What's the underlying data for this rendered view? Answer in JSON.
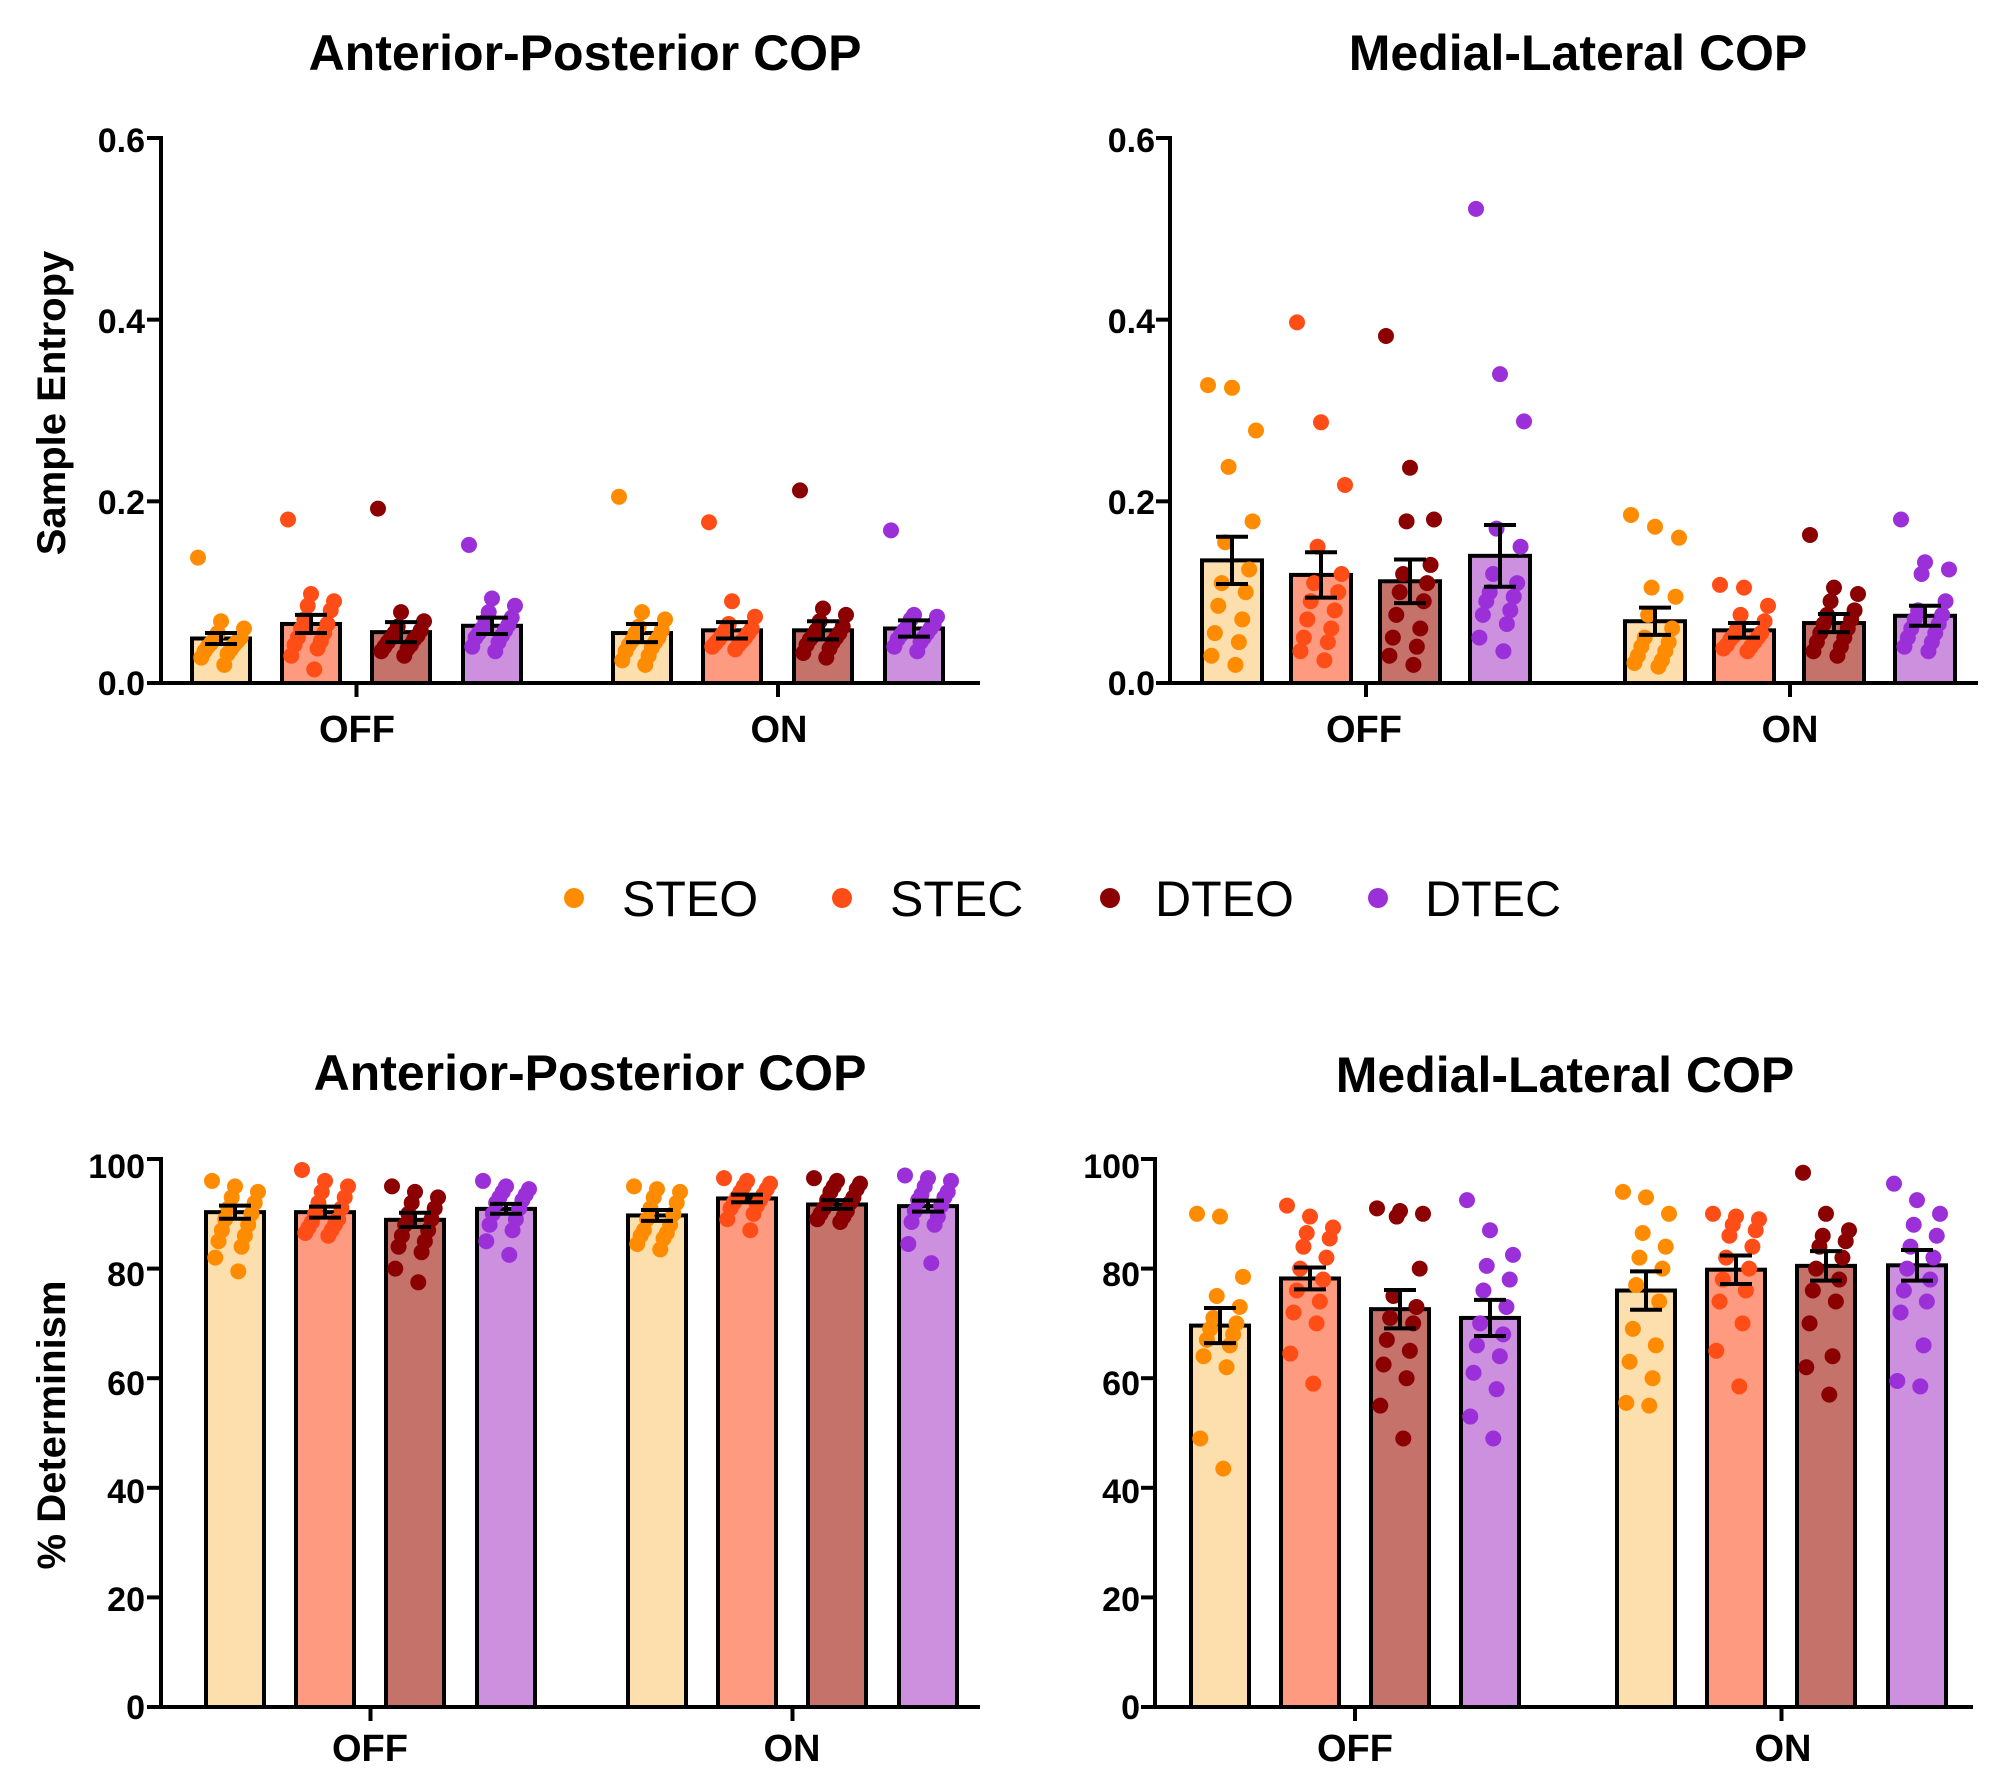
{
  "legend": [
    {
      "label": "STEO",
      "color": "#FF8C00",
      "fill": "#FDDFAE"
    },
    {
      "label": "STEC",
      "color": "#FF4D17",
      "fill": "#FD9A80"
    },
    {
      "label": "DTEO",
      "color": "#8B0000",
      "fill": "#C5726A"
    },
    {
      "label": "DTEC",
      "color": "#9B30D9",
      "fill": "#CC90DF"
    }
  ],
  "chart_data": [
    {
      "id": "se-ap",
      "type": "bar",
      "title": "Anterior-Posterior COP",
      "ylabel": "Sample Entropy",
      "ylim": [
        0,
        0.6
      ],
      "yticks": [
        "0.0",
        "0.2",
        "0.4",
        "0.6"
      ],
      "yticks_values": [
        0,
        0.2,
        0.4,
        0.6
      ],
      "groups": [
        "OFF",
        "ON"
      ],
      "series": [
        {
          "name": "STEO",
          "means": [
            0.049,
            0.055
          ],
          "sem": [
            0.006,
            0.01
          ],
          "points": [
            [
              0.138,
              0.068,
              0.06,
              0.055,
              0.05,
              0.048,
              0.046,
              0.044,
              0.042,
              0.04,
              0.037,
              0.035,
              0.032,
              0.028,
              0.02
            ],
            [
              0.205,
              0.078,
              0.07,
              0.062,
              0.058,
              0.055,
              0.05,
              0.047,
              0.045,
              0.042,
              0.039,
              0.035,
              0.03,
              0.025,
              0.02
            ]
          ]
        },
        {
          "name": "STEC",
          "means": [
            0.065,
            0.058
          ],
          "sem": [
            0.01,
            0.009
          ],
          "points": [
            [
              0.18,
              0.098,
              0.09,
              0.085,
              0.08,
              0.07,
              0.065,
              0.06,
              0.055,
              0.05,
              0.046,
              0.042,
              0.038,
              0.03,
              0.015
            ],
            [
              0.177,
              0.09,
              0.073,
              0.065,
              0.06,
              0.058,
              0.055,
              0.053,
              0.05,
              0.048,
              0.046,
              0.044,
              0.042,
              0.04,
              0.037
            ]
          ]
        },
        {
          "name": "DTEO",
          "means": [
            0.056,
            0.058
          ],
          "sem": [
            0.011,
            0.01
          ],
          "points": [
            [
              0.192,
              0.078,
              0.068,
              0.062,
              0.058,
              0.055,
              0.052,
              0.05,
              0.048,
              0.045,
              0.042,
              0.04,
              0.038,
              0.035,
              0.03
            ],
            [
              0.212,
              0.082,
              0.075,
              0.068,
              0.062,
              0.058,
              0.055,
              0.052,
              0.05,
              0.048,
              0.045,
              0.042,
              0.038,
              0.033,
              0.028
            ]
          ]
        },
        {
          "name": "DTEC",
          "means": [
            0.063,
            0.06
          ],
          "sem": [
            0.009,
            0.009
          ],
          "points": [
            [
              0.152,
              0.093,
              0.085,
              0.078,
              0.072,
              0.068,
              0.064,
              0.06,
              0.058,
              0.055,
              0.052,
              0.05,
              0.045,
              0.04,
              0.035
            ],
            [
              0.168,
              0.075,
              0.073,
              0.07,
              0.065,
              0.062,
              0.06,
              0.058,
              0.055,
              0.053,
              0.05,
              0.048,
              0.045,
              0.04,
              0.035
            ]
          ]
        }
      ]
    },
    {
      "id": "se-ml",
      "type": "bar",
      "title": "Medial-Lateral COP",
      "ylabel": "",
      "ylim": [
        0,
        0.6
      ],
      "yticks": [
        "0.0",
        "0.2",
        "0.4",
        "0.6"
      ],
      "yticks_values": [
        0,
        0.2,
        0.4,
        0.6
      ],
      "groups": [
        "OFF",
        "ON"
      ],
      "series": [
        {
          "name": "STEO",
          "means": [
            0.135,
            0.068
          ],
          "sem": [
            0.026,
            0.015
          ],
          "points": [
            [
              0.328,
              0.325,
              0.278,
              0.238,
              0.178,
              0.155,
              0.125,
              0.11,
              0.1,
              0.085,
              0.07,
              0.055,
              0.045,
              0.03,
              0.02
            ],
            [
              0.185,
              0.172,
              0.16,
              0.105,
              0.095,
              0.075,
              0.06,
              0.05,
              0.045,
              0.04,
              0.035,
              0.03,
              0.025,
              0.022,
              0.018
            ]
          ]
        },
        {
          "name": "STEC",
          "means": [
            0.119,
            0.058
          ],
          "sem": [
            0.025,
            0.008
          ],
          "points": [
            [
              0.397,
              0.287,
              0.218,
              0.15,
              0.12,
              0.11,
              0.1,
              0.09,
              0.08,
              0.07,
              0.06,
              0.05,
              0.045,
              0.035,
              0.025
            ],
            [
              0.108,
              0.105,
              0.085,
              0.075,
              0.068,
              0.06,
              0.055,
              0.052,
              0.05,
              0.048,
              0.045,
              0.042,
              0.04,
              0.038,
              0.035
            ]
          ]
        },
        {
          "name": "DTEO",
          "means": [
            0.112,
            0.066
          ],
          "sem": [
            0.024,
            0.01
          ],
          "points": [
            [
              0.382,
              0.237,
              0.18,
              0.178,
              0.13,
              0.12,
              0.11,
              0.1,
              0.09,
              0.075,
              0.06,
              0.05,
              0.04,
              0.03,
              0.02
            ],
            [
              0.163,
              0.105,
              0.098,
              0.09,
              0.08,
              0.075,
              0.07,
              0.065,
              0.06,
              0.055,
              0.05,
              0.045,
              0.04,
              0.035,
              0.03
            ]
          ]
        },
        {
          "name": "DTEC",
          "means": [
            0.14,
            0.074
          ],
          "sem": [
            0.034,
            0.011
          ],
          "points": [
            [
              0.522,
              0.34,
              0.288,
              0.17,
              0.15,
              0.12,
              0.11,
              0.1,
              0.095,
              0.09,
              0.08,
              0.075,
              0.065,
              0.05,
              0.035
            ],
            [
              0.18,
              0.133,
              0.125,
              0.12,
              0.09,
              0.08,
              0.075,
              0.07,
              0.065,
              0.06,
              0.055,
              0.05,
              0.045,
              0.04,
              0.035
            ]
          ]
        }
      ]
    },
    {
      "id": "det-ap",
      "type": "bar",
      "title": "Anterior-Posterior COP",
      "ylabel": "% Determinism",
      "ylim": [
        0,
        100
      ],
      "yticks": [
        "0",
        "20",
        "40",
        "60",
        "80",
        "100"
      ],
      "yticks_values": [
        0,
        20,
        40,
        60,
        80,
        100
      ],
      "groups": [
        "OFF",
        "ON"
      ],
      "series": [
        {
          "name": "STEO",
          "means": [
            90.3,
            89.7
          ],
          "sem": [
            1.2,
            1.0
          ],
          "points": [
            [
              96,
              95,
              94,
              93,
              92,
              91,
              90,
              89,
              88,
              87,
              86,
              85,
              84,
              82,
              79.5
            ],
            [
              95,
              94.5,
              94,
              93,
              92,
              91,
              90,
              89,
              88,
              87,
              86.5,
              86,
              85.5,
              84.5,
              83.5
            ]
          ]
        },
        {
          "name": "STEC",
          "means": [
            90.3,
            92.8
          ],
          "sem": [
            1.0,
            0.7
          ],
          "points": [
            [
              98,
              96,
              95,
              94,
              93,
              92,
              91,
              90,
              89,
              88.5,
              88,
              87.5,
              87,
              86.5,
              86
            ],
            [
              96.5,
              96,
              95.5,
              95,
              94.5,
              94,
              93.5,
              93,
              92.5,
              92,
              91.5,
              91,
              90,
              89,
              87
            ]
          ]
        },
        {
          "name": "DTEO",
          "means": [
            88.9,
            91.7
          ],
          "sem": [
            1.3,
            0.8
          ],
          "points": [
            [
              95,
              94,
              93,
              92,
              91,
              90,
              89,
              88,
              87,
              86,
              85,
              84,
              83,
              80,
              77.5
            ],
            [
              96.5,
              96,
              95.5,
              95,
              94.5,
              94,
              93,
              92.5,
              92,
              91,
              90.5,
              90,
              89.5,
              89,
              88.5
            ]
          ]
        },
        {
          "name": "DTEC",
          "means": [
            90.9,
            91.4
          ],
          "sem": [
            0.9,
            1.0
          ],
          "points": [
            [
              96,
              95,
              94.5,
              94,
              93.5,
              93,
              92.5,
              92,
              91,
              90,
              89,
              88,
              87,
              85,
              82.5
            ],
            [
              97,
              96.5,
              96,
              95,
              94,
              93.5,
              93,
              92.5,
              91.5,
              90.5,
              89.5,
              88.5,
              88,
              84.5,
              81
            ]
          ]
        }
      ]
    },
    {
      "id": "det-ml",
      "type": "bar",
      "title": "Medial-Lateral COP",
      "ylabel": "",
      "ylim": [
        0,
        100
      ],
      "yticks": [
        "0",
        "20",
        "40",
        "60",
        "80",
        "100"
      ],
      "yticks_values": [
        0,
        20,
        40,
        60,
        80,
        100
      ],
      "groups": [
        "OFF",
        "ON"
      ],
      "series": [
        {
          "name": "STEO",
          "means": [
            69.6,
            76.0
          ],
          "sem": [
            3.2,
            3.5
          ],
          "points": [
            [
              90,
              89.5,
              78.5,
              75,
              73,
              71,
              70,
              69,
              68,
              67,
              66,
              64,
              62,
              49,
              43.5
            ],
            [
              94,
              93,
              90,
              86.5,
              84,
              82,
              80,
              77,
              74,
              69,
              66,
              63,
              60,
              55.5,
              55
            ]
          ]
        },
        {
          "name": "STEC",
          "means": [
            78.2,
            79.8
          ],
          "sem": [
            2.0,
            2.6
          ],
          "points": [
            [
              91.5,
              89.5,
              87.5,
              86.5,
              85.5,
              84,
              82,
              80,
              78,
              76,
              74,
              72,
              70,
              64.5,
              59
            ],
            [
              90,
              89.5,
              89,
              88,
              87,
              86,
              84,
              82,
              80,
              78,
              76,
              74,
              70,
              65,
              58.5
            ]
          ]
        },
        {
          "name": "DTEO",
          "means": [
            72.6,
            80.5
          ],
          "sem": [
            3.5,
            2.7
          ],
          "points": [
            [
              91,
              90.5,
              90,
              89.5,
              80,
              75,
              73,
              71,
              70,
              67,
              65,
              62.5,
              60,
              55,
              49
            ],
            [
              97.5,
              90,
              87,
              86,
              85,
              84,
              82,
              80,
              78,
              76,
              74,
              70,
              64,
              62,
              57
            ]
          ]
        },
        {
          "name": "DTEC",
          "means": [
            71.0,
            80.6
          ],
          "sem": [
            3.3,
            2.8
          ],
          "points": [
            [
              92.5,
              87,
              82.5,
              80.5,
              78,
              76,
              73,
              70,
              68,
              66,
              64,
              61,
              58,
              53,
              49
            ],
            [
              95.5,
              92.5,
              90,
              88,
              86,
              84,
              82,
              80,
              78,
              76,
              74,
              72,
              66,
              59.5,
              58.5
            ]
          ]
        }
      ]
    }
  ]
}
